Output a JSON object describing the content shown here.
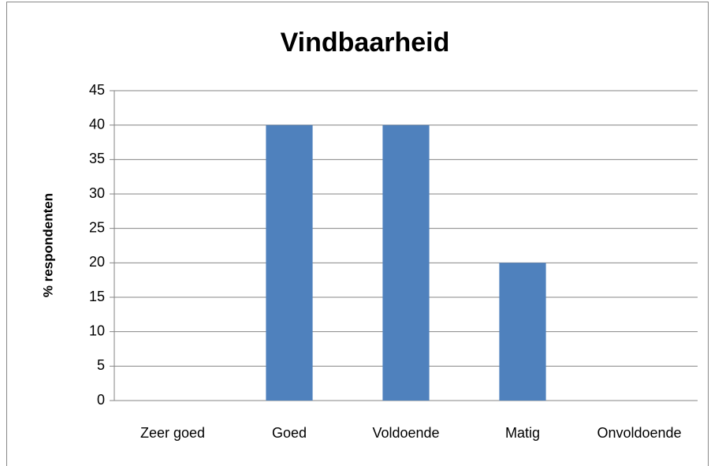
{
  "chart_data": {
    "type": "bar",
    "title": "Vindbaarheid",
    "y_label": "% respondenten",
    "categories": [
      "Zeer goed",
      "Goed",
      "Voldoende",
      "Matig",
      "Onvoldoende"
    ],
    "values": [
      0,
      40,
      40,
      20,
      0
    ],
    "color": "#4f81bd",
    "ylim": [
      0,
      45
    ],
    "yticks": [
      0,
      5,
      10,
      15,
      20,
      25,
      30,
      35,
      40,
      45
    ],
    "grid": true
  }
}
